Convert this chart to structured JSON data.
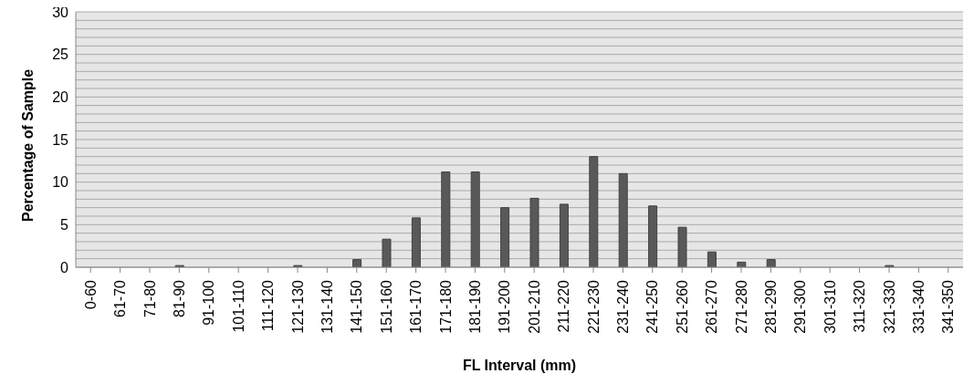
{
  "chart_data": {
    "type": "bar",
    "xlabel": "FL Interval (mm)",
    "ylabel": "Percentage of Sample",
    "categories": [
      "0-60",
      "61-70",
      "71-80",
      "81-90",
      "91-100",
      "101-110",
      "111-120",
      "121-130",
      "131-140",
      "141-150",
      "151-160",
      "161-170",
      "171-180",
      "181-190",
      "191-200",
      "201-210",
      "211-220",
      "221-230",
      "231-240",
      "241-250",
      "251-260",
      "261-270",
      "271-280",
      "281-290",
      "291-300",
      "301-310",
      "311-320",
      "321-330",
      "331-340",
      "341-350"
    ],
    "values": [
      0,
      0,
      0,
      0.2,
      0,
      0,
      0,
      0.2,
      0,
      0.9,
      3.3,
      5.8,
      11.2,
      11.2,
      7.0,
      8.1,
      7.4,
      13.0,
      11.0,
      7.2,
      4.7,
      1.8,
      0.6,
      0.9,
      0,
      0,
      0,
      0.2,
      0,
      0
    ],
    "color": "#595959",
    "ylim": [
      0,
      30
    ],
    "yticks": [
      0,
      {
        "value": 1,
        "label": null
      },
      {
        "value": 2,
        "label": null
      },
      {
        "value": 3,
        "label": null
      },
      {
        "value": 4,
        "label": null
      },
      5,
      {
        "value": 6,
        "label": null
      },
      {
        "value": 7,
        "label": null
      },
      {
        "value": 8,
        "label": null
      },
      {
        "value": 9,
        "label": null
      },
      10,
      {
        "value": 11,
        "label": null
      },
      {
        "value": 12,
        "label": null
      },
      {
        "value": 13,
        "label": null
      },
      {
        "value": 14,
        "label": null
      },
      15,
      {
        "value": 16,
        "label": null
      },
      {
        "value": 17,
        "label": null
      },
      {
        "value": 18,
        "label": null
      },
      {
        "value": 19,
        "label": null
      },
      20,
      {
        "value": 21,
        "label": null
      },
      {
        "value": 22,
        "label": null
      },
      {
        "value": 23,
        "label": null
      },
      {
        "value": 24,
        "label": null
      },
      25,
      {
        "value": 26,
        "label": null
      },
      {
        "value": 27,
        "label": null
      },
      {
        "value": 28,
        "label": null
      },
      {
        "value": 29,
        "label": null
      },
      30
    ],
    "grid": true,
    "legend": false
  }
}
